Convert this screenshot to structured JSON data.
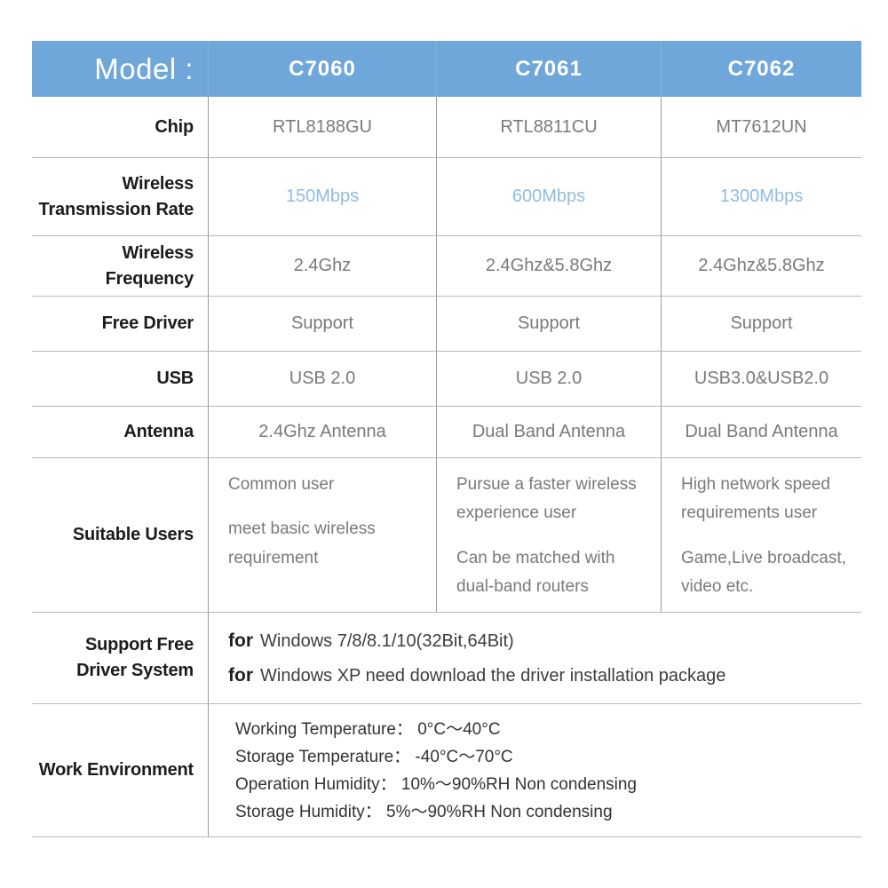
{
  "colors": {
    "header_bg": "#6FA7DB",
    "header_text": "#FFFFFF",
    "rate_highlight_text": "#8FBCE5",
    "label_text": "#1C1C1C",
    "value_text": "#7A7A7A",
    "detail_text": "#3D3D3D",
    "grid_line": "#9A9A9A"
  },
  "header": {
    "label": "Model :",
    "models": [
      "C7060",
      "C7061",
      "C7062"
    ]
  },
  "rows": [
    {
      "label": "Chip",
      "values": [
        "RTL8188GU",
        "RTL8811CU",
        "MT7612UN"
      ]
    },
    {
      "label": "Wireless\nTransmission Rate",
      "values": [
        "150Mbps",
        "600Mbps",
        "1300Mbps"
      ]
    },
    {
      "label": "Wireless Frequency",
      "values": [
        "2.4Ghz",
        "2.4Ghz&5.8Ghz",
        "2.4Ghz&5.8Ghz"
      ]
    },
    {
      "label": "Free Driver",
      "values": [
        "Support",
        "Support",
        "Support"
      ]
    },
    {
      "label": "USB",
      "values": [
        "USB 2.0",
        "USB 2.0",
        "USB3.0&USB2.0"
      ]
    },
    {
      "label": "Antenna",
      "values": [
        "2.4Ghz Antenna",
        "Dual Band Antenna",
        "Dual Band Antenna"
      ]
    }
  ],
  "suitable_users": {
    "label": "Suitable Users",
    "cells": [
      {
        "lines": [
          "Common user",
          "meet basic wireless requirement"
        ]
      },
      {
        "lines": [
          "Pursue a faster wireless experience user",
          "Can be matched with dual-band routers"
        ]
      },
      {
        "lines": [
          "High network speed requirements user",
          "Game,Live broadcast, video etc."
        ]
      }
    ]
  },
  "driver_system": {
    "label": "Support Free\nDriver System",
    "lines": [
      {
        "prefix": "for",
        "text": "Windows 7/8/8.1/10(32Bit,64Bit)"
      },
      {
        "prefix": "for",
        "text": "Windows XP need download the driver installation package"
      }
    ]
  },
  "work_environment": {
    "label": "Work Environment",
    "lines": [
      "Working Temperature： 0°C～40°C",
      "Storage Temperature： -40°C～70°C",
      "Operation Humidity： 10%～90%RH Non condensing",
      "Storage Humidity： 5%～90%RH Non condensing"
    ]
  }
}
